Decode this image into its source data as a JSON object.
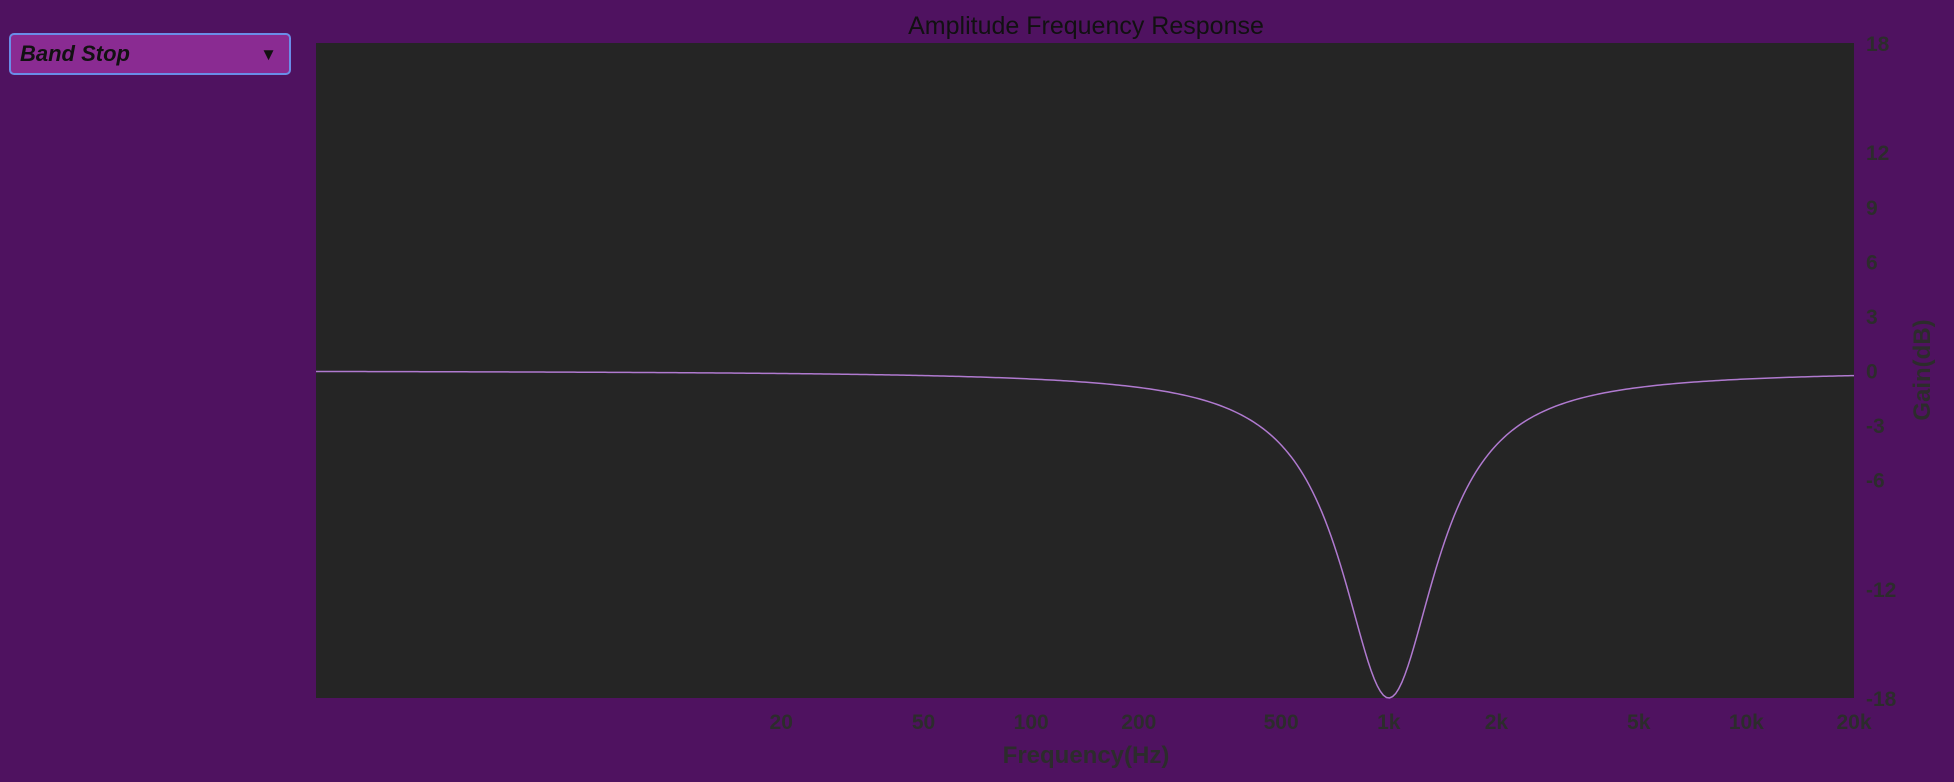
{
  "filter_selector": {
    "selected": "Band Stop",
    "arrow_icon": "triangle-down-icon"
  },
  "colors": {
    "background": "#4f1260",
    "plot_background": "#252525",
    "curve": "#b07ad0",
    "dropdown_fill": "#8a2b92",
    "dropdown_border": "#6a8de8"
  },
  "chart_data": {
    "type": "line",
    "title": "Amplitude Frequency Response",
    "xlabel": "Frequency(Hz)",
    "ylabel": "Gain(dB)",
    "x_scale": "log",
    "xlim": [
      1,
      20000
    ],
    "ylim": [
      -18,
      18
    ],
    "x_ticks": [
      {
        "value": 20,
        "label": "20"
      },
      {
        "value": 50,
        "label": "50"
      },
      {
        "value": 100,
        "label": "100"
      },
      {
        "value": 200,
        "label": "200"
      },
      {
        "value": 500,
        "label": "500"
      },
      {
        "value": 1000,
        "label": "1k"
      },
      {
        "value": 2000,
        "label": "2k"
      },
      {
        "value": 5000,
        "label": "5k"
      },
      {
        "value": 10000,
        "label": "10k"
      },
      {
        "value": 20000,
        "label": "20k"
      }
    ],
    "y_ticks": [
      {
        "value": 18,
        "label": "18"
      },
      {
        "value": 12,
        "label": "12"
      },
      {
        "value": 9,
        "label": "9"
      },
      {
        "value": 6,
        "label": "6"
      },
      {
        "value": 3,
        "label": "3"
      },
      {
        "value": 0,
        "label": "0"
      },
      {
        "value": -3,
        "label": "-3"
      },
      {
        "value": -6,
        "label": "-6"
      },
      {
        "value": -12,
        "label": "-12"
      },
      {
        "value": -18,
        "label": "-18"
      }
    ],
    "grid": false,
    "series": [
      {
        "filter": "band-stop",
        "center_frequency_hz": 1000,
        "min_gain_db": -18,
        "points": [
          {
            "x": 1,
            "y": 0
          },
          {
            "x": 10,
            "y": 0
          },
          {
            "x": 50,
            "y": 0
          },
          {
            "x": 100,
            "y": -0.05
          },
          {
            "x": 200,
            "y": -0.4
          },
          {
            "x": 300,
            "y": -1.2
          },
          {
            "x": 500,
            "y": -4
          },
          {
            "x": 700,
            "y": -9
          },
          {
            "x": 850,
            "y": -14.5
          },
          {
            "x": 1000,
            "y": -18
          },
          {
            "x": 1200,
            "y": -13.5
          },
          {
            "x": 1500,
            "y": -8.5
          },
          {
            "x": 2000,
            "y": -4.5
          },
          {
            "x": 3000,
            "y": -1.8
          },
          {
            "x": 5000,
            "y": -0.6
          },
          {
            "x": 10000,
            "y": -0.12
          },
          {
            "x": 20000,
            "y": 0
          }
        ]
      }
    ]
  }
}
